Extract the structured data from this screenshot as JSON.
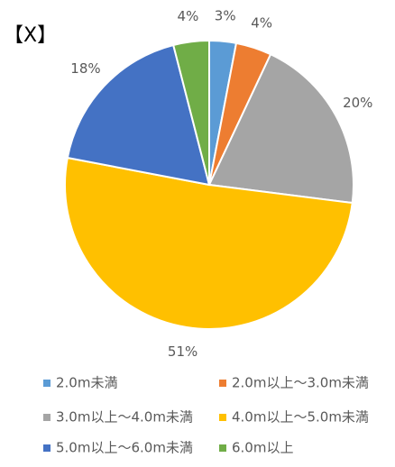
{
  "chart_data": {
    "type": "pie",
    "title": "【X】",
    "categories": [
      "2.0m未満",
      "2.0m以上～3.0m未満",
      "3.0m以上～4.0m未満",
      "4.0m以上～5.0m未満",
      "5.0m以上～6.0m未満",
      "6.0m以上"
    ],
    "values": [
      3,
      4,
      20,
      51,
      18,
      4
    ],
    "value_labels": [
      "3%",
      "4%",
      "20%",
      "51%",
      "18%",
      "4%"
    ],
    "colors": [
      "#5b9bd5",
      "#ed7d31",
      "#a5a5a5",
      "#ffc000",
      "#4472c4",
      "#70ad47"
    ],
    "legend": "bottom"
  }
}
